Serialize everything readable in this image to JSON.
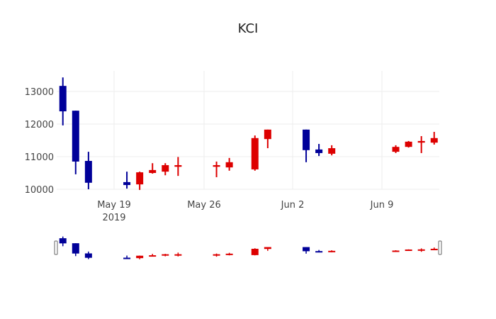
{
  "title": "KCI",
  "colors": {
    "increasing": "#dd0000",
    "decreasing": "#000099",
    "grid": "#eeeeee"
  },
  "chart_data": {
    "type": "candlestick",
    "title": "KCI",
    "xlabel": "",
    "ylabel": "",
    "x_ticks": [
      "May 19\n2019",
      "May 26",
      "Jun 2",
      "Jun 9"
    ],
    "y_ticks": [
      10000,
      11000,
      12000,
      13000
    ],
    "ylim": [
      9950,
      13500
    ],
    "rangeslider": true,
    "candles": [
      {
        "date": "2019-05-15",
        "open": 13170,
        "high": 13430,
        "low": 11960,
        "close": 12390
      },
      {
        "date": "2019-05-16",
        "open": 12410,
        "high": 12410,
        "low": 10460,
        "close": 10850
      },
      {
        "date": "2019-05-17",
        "open": 10870,
        "high": 11150,
        "low": 10000,
        "close": 10200
      },
      {
        "date": "2019-05-20",
        "open": 10220,
        "high": 10540,
        "low": 10020,
        "close": 10130
      },
      {
        "date": "2019-05-21",
        "open": 10150,
        "high": 10540,
        "low": 9980,
        "close": 10520
      },
      {
        "date": "2019-05-22",
        "open": 10500,
        "high": 10800,
        "low": 10480,
        "close": 10590
      },
      {
        "date": "2019-05-23",
        "open": 10540,
        "high": 10800,
        "low": 10430,
        "close": 10740
      },
      {
        "date": "2019-05-24",
        "open": 10690,
        "high": 10990,
        "low": 10410,
        "close": 10740
      },
      {
        "date": "2019-05-27",
        "open": 10690,
        "high": 10850,
        "low": 10370,
        "close": 10740
      },
      {
        "date": "2019-05-28",
        "open": 10670,
        "high": 10960,
        "low": 10570,
        "close": 10830
      },
      {
        "date": "2019-05-30",
        "open": 10610,
        "high": 11650,
        "low": 10570,
        "close": 11570
      },
      {
        "date": "2019-05-31",
        "open": 11540,
        "high": 11830,
        "low": 11260,
        "close": 11830
      },
      {
        "date": "2019-06-03",
        "open": 11830,
        "high": 11830,
        "low": 10830,
        "close": 11200
      },
      {
        "date": "2019-06-04",
        "open": 11220,
        "high": 11390,
        "low": 11020,
        "close": 11110
      },
      {
        "date": "2019-06-05",
        "open": 11090,
        "high": 11350,
        "low": 11040,
        "close": 11260
      },
      {
        "date": "2019-06-10",
        "open": 11150,
        "high": 11350,
        "low": 11110,
        "close": 11300
      },
      {
        "date": "2019-06-11",
        "open": 11300,
        "high": 11480,
        "low": 11280,
        "close": 11460
      },
      {
        "date": "2019-06-12",
        "open": 11430,
        "high": 11630,
        "low": 11110,
        "close": 11480
      },
      {
        "date": "2019-06-13",
        "open": 11430,
        "high": 11760,
        "low": 11370,
        "close": 11570
      }
    ]
  }
}
